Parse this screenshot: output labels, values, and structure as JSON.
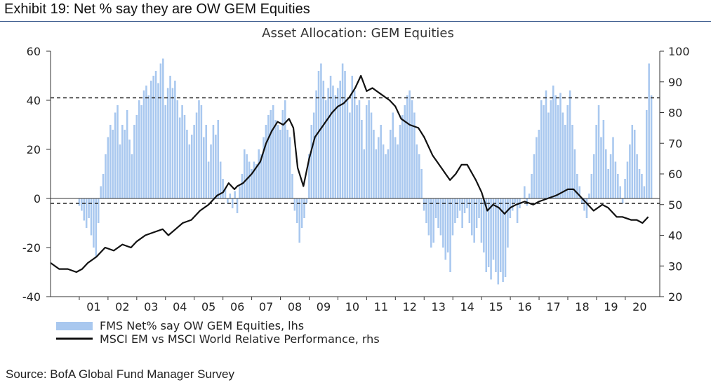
{
  "exhibit": {
    "title": "Exhibit 19: Net % say they are OW GEM Equities",
    "source": "Source: BofA Global Fund Manager Survey"
  },
  "chart_data": {
    "type": "bar",
    "title": "Asset Allocation: GEM Equities",
    "xlabel": "",
    "ylabel": "",
    "x_tick_labels": [
      "01",
      "02",
      "03",
      "04",
      "05",
      "06",
      "07",
      "08",
      "09",
      "10",
      "11",
      "12",
      "13",
      "14",
      "15",
      "16",
      "17",
      "18",
      "19",
      "20"
    ],
    "y_left": {
      "lim": [
        -40,
        60
      ],
      "ticks": [
        -40,
        -20,
        0,
        20,
        40,
        60
      ]
    },
    "y_right": {
      "lim": [
        20,
        100
      ],
      "ticks": [
        20,
        30,
        40,
        50,
        60,
        70,
        80,
        90,
        100
      ]
    },
    "reference_lines": [
      {
        "axis": "left",
        "value": 41,
        "style": "dashed"
      },
      {
        "axis": "left",
        "value": -2,
        "style": "dashed"
      }
    ],
    "zero_line": true,
    "legend": {
      "placement": "bottom",
      "entries": [
        "FMS Net% say OW GEM Equities, lhs",
        "MSCI EM vs MSCI World Relative Performance, rhs"
      ]
    },
    "series": [
      {
        "name": "FMS Net% say OW GEM Equities, lhs",
        "kind": "bar",
        "axis": "left",
        "color": "#a9c8ef",
        "x_start": 2001.0,
        "step": 0.0833,
        "values": [
          -3,
          -5,
          -9,
          -12,
          -8,
          -15,
          -20,
          -24,
          -10,
          5,
          10,
          18,
          25,
          30,
          28,
          35,
          38,
          22,
          30,
          28,
          36,
          24,
          18,
          30,
          34,
          40,
          38,
          44,
          46,
          42,
          48,
          50,
          52,
          47,
          55,
          57,
          38,
          45,
          50,
          45,
          48,
          40,
          33,
          38,
          34,
          28,
          22,
          26,
          30,
          35,
          40,
          38,
          25,
          30,
          15,
          22,
          30,
          26,
          32,
          15,
          8,
          4,
          -2,
          2,
          -4,
          3,
          -6,
          5,
          10,
          20,
          18,
          15,
          12,
          15,
          14,
          20,
          18,
          25,
          30,
          34,
          36,
          38,
          32,
          30,
          28,
          36,
          40,
          28,
          25,
          10,
          -5,
          -10,
          -18,
          -12,
          -8,
          -2,
          18,
          30,
          35,
          44,
          52,
          55,
          48,
          40,
          45,
          50,
          46,
          42,
          45,
          48,
          55,
          52,
          40,
          35,
          50,
          44,
          38,
          40,
          32,
          20,
          38,
          40,
          35,
          28,
          20,
          25,
          30,
          22,
          18,
          20,
          28,
          35,
          25,
          22,
          30,
          34,
          38,
          42,
          44,
          40,
          35,
          22,
          18,
          12,
          -5,
          -10,
          -15,
          -20,
          -18,
          -8,
          -12,
          -15,
          -20,
          -25,
          -22,
          -30,
          -15,
          -10,
          -8,
          -5,
          -12,
          -6,
          -4,
          -10,
          -15,
          -18,
          -12,
          -8,
          -18,
          -22,
          -30,
          -28,
          -33,
          -25,
          -30,
          -35,
          -30,
          -34,
          -32,
          -20,
          -8,
          -5,
          -2,
          -10,
          -4,
          0,
          5,
          -3,
          2,
          10,
          18,
          25,
          28,
          40,
          38,
          44,
          35,
          40,
          46,
          42,
          38,
          43,
          35,
          30,
          38,
          44,
          30,
          20,
          10,
          5,
          -2,
          -5,
          -8,
          2,
          10,
          18,
          30,
          38,
          25,
          32,
          20,
          12,
          18,
          25,
          15,
          10,
          5,
          -2,
          8,
          15,
          22,
          30,
          28,
          18,
          12,
          10,
          5,
          36,
          55,
          42
        ]
      },
      {
        "name": "MSCI EM vs MSCI World Relative Performance, rhs",
        "kind": "line",
        "axis": "right",
        "color": "#111111",
        "x": [
          2000.0,
          2000.3,
          2000.6,
          2000.9,
          2001.1,
          2001.3,
          2001.6,
          2001.9,
          2002.2,
          2002.5,
          2002.8,
          2003.0,
          2003.3,
          2003.6,
          2003.9,
          2004.1,
          2004.35,
          2004.6,
          2004.9,
          2005.2,
          2005.5,
          2005.8,
          2006.0,
          2006.2,
          2006.4,
          2006.5,
          2006.7,
          2007.0,
          2007.3,
          2007.5,
          2007.7,
          2007.9,
          2008.1,
          2008.3,
          2008.45,
          2008.6,
          2008.8,
          2009.0,
          2009.2,
          2009.5,
          2009.8,
          2010.0,
          2010.2,
          2010.4,
          2010.6,
          2010.8,
          2011.0,
          2011.2,
          2011.5,
          2011.8,
          2012.0,
          2012.2,
          2012.5,
          2012.8,
          2013.0,
          2013.3,
          2013.6,
          2013.9,
          2014.1,
          2014.3,
          2014.5,
          2014.8,
          2015.0,
          2015.2,
          2015.4,
          2015.6,
          2015.8,
          2016.0,
          2016.2,
          2016.5,
          2016.8,
          2017.0,
          2017.3,
          2017.6,
          2017.8,
          2018.0,
          2018.2,
          2018.4,
          2018.6,
          2018.9,
          2019.2,
          2019.4,
          2019.7,
          2019.9,
          2020.2,
          2020.4,
          2020.6,
          2020.8
        ],
        "values": [
          31,
          29,
          29,
          28,
          29,
          31,
          33,
          36,
          35,
          37,
          36,
          38,
          40,
          41,
          42,
          40,
          42,
          44,
          45,
          48,
          50,
          53,
          54,
          57,
          55,
          56,
          57,
          60,
          64,
          70,
          74,
          77,
          76,
          78,
          75,
          62,
          56,
          65,
          72,
          76,
          80,
          82,
          83,
          85,
          88,
          92,
          87,
          88,
          86,
          84,
          82,
          78,
          76,
          75,
          72,
          66,
          62,
          58,
          60,
          63,
          63,
          58,
          54,
          48,
          50,
          49,
          47,
          49,
          50,
          51,
          50,
          51,
          52,
          53,
          54,
          55,
          55,
          53,
          51,
          48,
          50,
          49,
          46,
          46,
          45,
          45,
          44,
          46
        ]
      }
    ]
  }
}
